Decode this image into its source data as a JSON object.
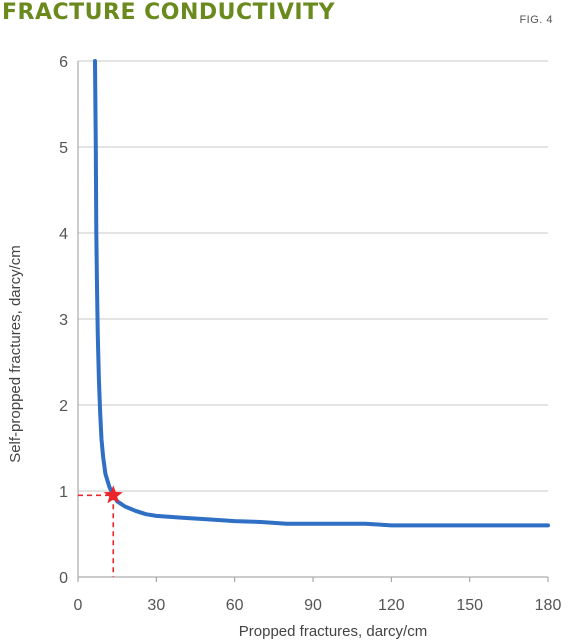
{
  "header": {
    "title": "FRACTURE CONDUCTIVITY",
    "figure_label": "FIG. 4"
  },
  "colors": {
    "title": "#6a8a1e",
    "curve": "#2f6fc4",
    "marker": "#e8262b",
    "grid": "#c8c8c8"
  },
  "chart_data": {
    "type": "line",
    "xlabel": "Propped fractures, darcy/cm",
    "ylabel": "Self-propped fractures, darcy/cm",
    "xlim": [
      0,
      180
    ],
    "ylim": [
      0,
      6
    ],
    "x_ticks": [
      0,
      30,
      60,
      90,
      120,
      150,
      180
    ],
    "y_ticks": [
      0,
      1,
      2,
      3,
      4,
      5,
      6
    ],
    "grid": "horizontal",
    "series": [
      {
        "x": [
          6.5,
          6.8,
          7.0,
          7.3,
          7.6,
          8.0,
          8.5,
          9.0,
          9.6,
          10.5,
          12,
          13.5,
          15,
          18,
          22,
          26,
          30,
          40,
          50,
          60,
          70,
          80,
          90,
          100,
          110,
          120,
          130,
          150,
          180
        ],
        "y": [
          6.0,
          5.0,
          4.0,
          3.3,
          2.8,
          2.3,
          1.9,
          1.6,
          1.4,
          1.2,
          1.05,
          0.95,
          0.88,
          0.82,
          0.77,
          0.73,
          0.71,
          0.69,
          0.67,
          0.65,
          0.64,
          0.62,
          0.62,
          0.62,
          0.62,
          0.6,
          0.6,
          0.6,
          0.6
        ]
      }
    ],
    "highlight_point": {
      "x": 13.5,
      "y": 0.95
    }
  }
}
